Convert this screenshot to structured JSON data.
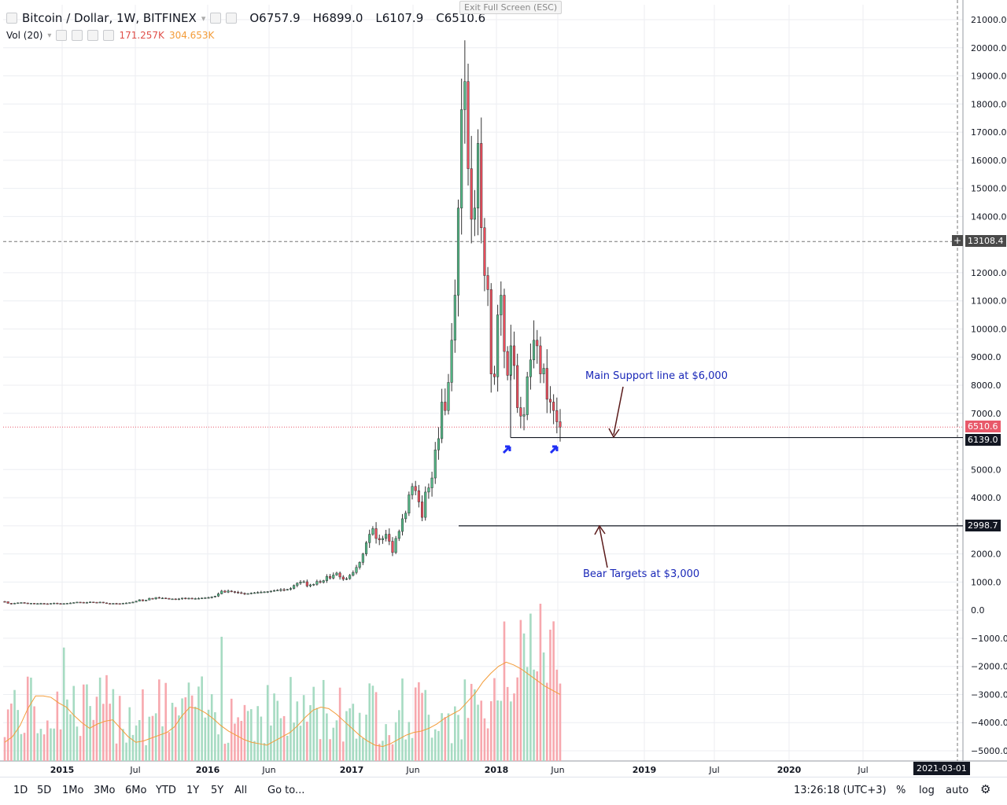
{
  "header": {
    "symbol": "Bitcoin / Dollar, 1W, BITFINEX",
    "open": "O6757.9",
    "high": "H6899.0",
    "low": "L6107.9",
    "close": "C6510.6",
    "vol_label": "Vol (20)",
    "vol_value": "171.257K",
    "vol_ma": "304.653K",
    "esc_tip": "Exit Full Screen (ESC)"
  },
  "toolbar": {
    "ranges": [
      "1D",
      "5D",
      "1Mo",
      "3Mo",
      "6Mo",
      "YTD",
      "1Y",
      "5Y",
      "All"
    ],
    "goto": "Go to...",
    "clock": "13:26:18 (UTC+3)",
    "percent": "%",
    "log": "log",
    "auto": "auto"
  },
  "annotations": {
    "support_label": "Main Support line at $6,000",
    "bear_label": "Bear Targets at $3,000"
  },
  "colors": {
    "up": "#53b987",
    "down": "#eb4d5c",
    "vol_up": "#a6dbc2",
    "vol_down": "#f7a8ae",
    "ma": "#f39c39",
    "annotation": "#1a28b8",
    "grid": "#eceef2"
  },
  "chart_data": {
    "type": "candlestick",
    "title": "Bitcoin / Dollar, 1W, BITFINEX",
    "y_axis": {
      "min": -5000,
      "max": 21000,
      "ticks": [
        21000,
        20000,
        19000,
        18000,
        17000,
        16000,
        15000,
        14000,
        12000,
        11000,
        10000,
        9000,
        8000,
        7000,
        5000,
        4000,
        3000,
        2000,
        1000,
        0,
        -1000,
        -2000,
        -3000,
        -4000,
        -5000
      ],
      "tick_labels": [
        "21000.0",
        "20000.0",
        "19000.0",
        "18000.0",
        "17000.0",
        "16000.0",
        "15000.0",
        "14000.0",
        "12000.0",
        "11000.0",
        "10000.0",
        "9000.0",
        "8000.0",
        "7000.0",
        "5000.0",
        "4000.0",
        "3000.0",
        "2000.0",
        "1000.0",
        "0.0",
        "−1000.0",
        "−2000.0",
        "−3000.0",
        "−4000.0",
        "−5000.0"
      ]
    },
    "x_axis": {
      "labels": [
        "2015",
        "Jul",
        "2016",
        "Jun",
        "2017",
        "Jun",
        "2018",
        "Jun",
        "2019",
        "Jul",
        "2020",
        "Jul"
      ],
      "cursor_date": "2021-03-01"
    },
    "price_badges": {
      "crosshair": "13108.4",
      "last": "6510.6",
      "support": "6139.0",
      "bear": "2998.7"
    },
    "levels": {
      "crosshair": 13108.4,
      "last": 6510.6,
      "support": 6139.0,
      "bear": 2998.7
    },
    "weekly_closes": [
      300,
      245,
      220,
      250,
      260,
      270,
      255,
      240,
      245,
      225,
      235,
      240,
      230,
      225,
      240,
      250,
      235,
      225,
      235,
      245,
      255,
      270,
      285,
      280,
      265,
      275,
      290,
      280,
      270,
      285,
      260,
      240,
      235,
      240,
      235,
      230,
      245,
      255,
      270,
      285,
      320,
      370,
      330,
      360,
      420,
      400,
      450,
      430,
      430,
      420,
      390,
      400,
      380,
      400,
      430,
      415,
      425,
      410,
      415,
      420,
      430,
      440,
      450,
      470,
      500,
      580,
      680,
      640,
      680,
      660,
      640,
      620,
      600,
      580,
      590,
      610,
      620,
      630,
      640,
      650,
      660,
      680,
      700,
      710,
      730,
      720,
      740,
      770,
      880,
      960,
      1000,
      1010,
      860,
      900,
      920,
      1020,
      990,
      1050,
      1200,
      1140,
      1250,
      1320,
      1180,
      1100,
      1120,
      1240,
      1340,
      1520,
      1700,
      2000,
      2400,
      2700,
      2900,
      2550,
      2500,
      2550,
      2700,
      2450,
      2050,
      2550,
      2800,
      3250,
      3450,
      4100,
      4400,
      4250,
      3850,
      3300,
      4200,
      4350,
      4700,
      5700,
      6100,
      7400,
      7100,
      8100,
      9600,
      11200,
      14300,
      17800,
      18800,
      15700,
      13900,
      14300,
      16600,
      13600,
      11900,
      11400,
      8400,
      8300,
      10500,
      11200,
      9200,
      8350,
      9400,
      8700,
      7200,
      6900,
      6950,
      8300,
      8900,
      9600,
      9400,
      8400,
      8600,
      7500,
      7400,
      7100,
      6700,
      6510.6
    ],
    "volume_ma_20": [
      -4700,
      -4500,
      -4100,
      -3500,
      -3050,
      -3050,
      -3100,
      -3300,
      -3450,
      -3750,
      -4000,
      -4200,
      -4050,
      -3950,
      -3900,
      -4200,
      -4500,
      -4700,
      -4650,
      -4550,
      -4450,
      -4350,
      -4150,
      -3750,
      -3450,
      -3500,
      -3650,
      -3850,
      -4100,
      -4300,
      -4450,
      -4600,
      -4700,
      -4750,
      -4800,
      -4650,
      -4500,
      -4350,
      -4100,
      -3800,
      -3550,
      -3450,
      -3500,
      -3700,
      -3950,
      -4200,
      -4450,
      -4650,
      -4800,
      -4850,
      -4750,
      -4600,
      -4450,
      -4350,
      -4300,
      -4200,
      -4050,
      -3850,
      -3700,
      -3550,
      -3250,
      -2950,
      -2550,
      -2250,
      -2000,
      -1850,
      -1950,
      -2100,
      -2300,
      -2500,
      -2700,
      -2850,
      -3000
    ]
  }
}
